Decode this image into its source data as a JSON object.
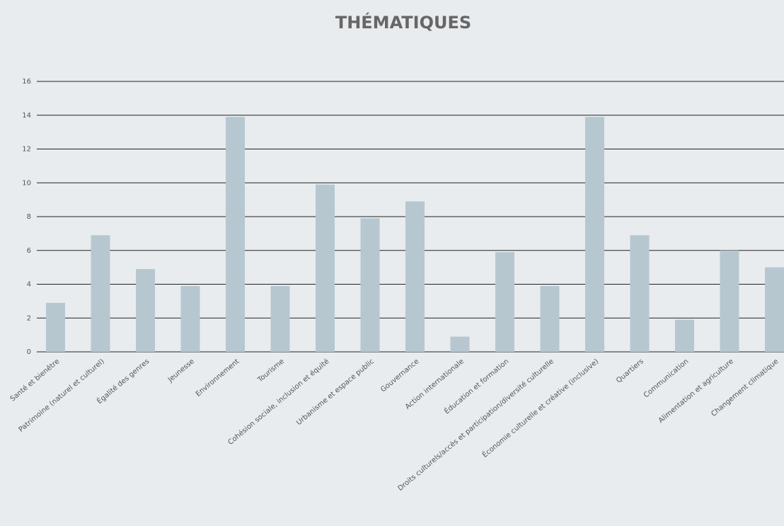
{
  "chart_data": {
    "type": "bar",
    "title": "THÉMATIQUES",
    "categories": [
      "Santé et bienêtre",
      "Patrimoine (naturel et culturel)",
      "Égalité des genres",
      "Jeunesse",
      "Environnement",
      "Tourisme",
      "Cohésion sociale, inclusion et équité",
      "Urbanisme et espace public",
      "Gouvernance",
      "Action internationale",
      "Éducation et formation",
      "Droits culturels/accès et participation/diversité culturelle",
      "Économie culturelle et créative (inclusive)",
      "Quartiers",
      "Communication",
      "Alimentation et agriculture",
      "Changement climatique"
    ],
    "values": [
      2.9,
      6.9,
      4.9,
      3.9,
      13.9,
      3.9,
      9.9,
      7.9,
      8.9,
      0.9,
      5.9,
      3.9,
      13.9,
      6.9,
      1.9,
      6,
      5
    ],
    "color": "#b6c7d0",
    "ylim": [
      0,
      16
    ],
    "yticks": [
      0,
      2,
      4,
      6,
      8,
      10,
      12,
      14,
      16
    ],
    "grid": true
  }
}
